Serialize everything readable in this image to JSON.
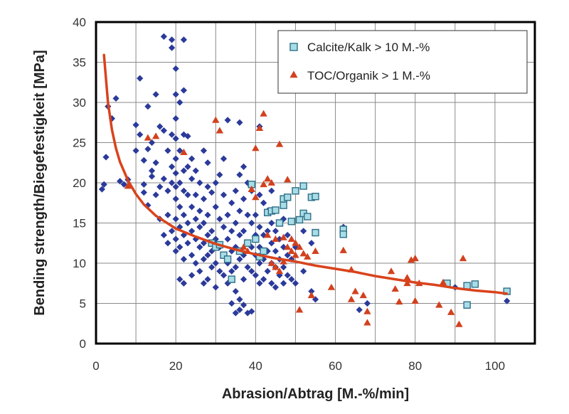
{
  "chart_data": {
    "type": "scatter",
    "title": "",
    "xlabel": "Abrasion/Abtrag [M.-%/min]",
    "ylabel": "Bending strength/Biegefestigkeit [MPa]",
    "xlim": [
      0,
      110
    ],
    "ylim": [
      0,
      40
    ],
    "xticks": [
      0,
      20,
      40,
      60,
      80,
      100
    ],
    "yticks": [
      0,
      5,
      10,
      15,
      20,
      25,
      30,
      35,
      40
    ],
    "grid": true,
    "legend_position": "top-right",
    "colors": {
      "all_samples": "#2b3a9a",
      "calcite": "#a8dde8",
      "calcite_border": "#2e6f86",
      "toc": "#d2411e",
      "trend": "#d9431c"
    },
    "series": [
      {
        "marker": "diamond",
        "points": [
          [
            1.5,
            19.2
          ],
          [
            2,
            19.8
          ],
          [
            2.5,
            23.2
          ],
          [
            3,
            29.5
          ],
          [
            4,
            28.0
          ],
          [
            5,
            30.5
          ],
          [
            6,
            20.2
          ],
          [
            7,
            19.8
          ],
          [
            8,
            20.4
          ],
          [
            10,
            24.0
          ],
          [
            10,
            27.2
          ],
          [
            11,
            33.0
          ],
          [
            11,
            26.0
          ],
          [
            12,
            22.8
          ],
          [
            12,
            19.8
          ],
          [
            12,
            18.8
          ],
          [
            13,
            17.2
          ],
          [
            13,
            29.5
          ],
          [
            13,
            24.2
          ],
          [
            14,
            25.0
          ],
          [
            14,
            21.5
          ],
          [
            14,
            20.8
          ],
          [
            15,
            31.0
          ],
          [
            15,
            22.5
          ],
          [
            15,
            18.5
          ],
          [
            16,
            15.5
          ],
          [
            16,
            19.5
          ],
          [
            16,
            27.0
          ],
          [
            17,
            38.2
          ],
          [
            17,
            26.5
          ],
          [
            17,
            20.5
          ],
          [
            17,
            13.5
          ],
          [
            18,
            24.0
          ],
          [
            18,
            19.0
          ],
          [
            18,
            16.0
          ],
          [
            18,
            12.5
          ],
          [
            19,
            37.8
          ],
          [
            19,
            36.8
          ],
          [
            19,
            26.0
          ],
          [
            19,
            22.0
          ],
          [
            19,
            20.0
          ],
          [
            19,
            14.0
          ],
          [
            20,
            34.2
          ],
          [
            20,
            31.0
          ],
          [
            20,
            28.0
          ],
          [
            20,
            25.5
          ],
          [
            20,
            23.0
          ],
          [
            20,
            21.2
          ],
          [
            20,
            19.5
          ],
          [
            20,
            18.0
          ],
          [
            20,
            15.5
          ],
          [
            20,
            13.0
          ],
          [
            20,
            11.5
          ],
          [
            21,
            30.0
          ],
          [
            21,
            24.0
          ],
          [
            21,
            20.0
          ],
          [
            21,
            17.0
          ],
          [
            21,
            14.5
          ],
          [
            21,
            12.0
          ],
          [
            21,
            8.0
          ],
          [
            22,
            37.8
          ],
          [
            22,
            31.5
          ],
          [
            22,
            26.0
          ],
          [
            22,
            21.5
          ],
          [
            22,
            19.0
          ],
          [
            22,
            16.0
          ],
          [
            22,
            13.5
          ],
          [
            22,
            10.5
          ],
          [
            22,
            7.5
          ],
          [
            23,
            25.8
          ],
          [
            23,
            22.0
          ],
          [
            23,
            18.5
          ],
          [
            23,
            15.0
          ],
          [
            23,
            12.5
          ],
          [
            24,
            23.0
          ],
          [
            24,
            20.5
          ],
          [
            24,
            17.0
          ],
          [
            24,
            14.0
          ],
          [
            24,
            11.0
          ],
          [
            24,
            8.5
          ],
          [
            25,
            21.5
          ],
          [
            25,
            18.5
          ],
          [
            25,
            15.5
          ],
          [
            25,
            13.0
          ],
          [
            25,
            10.0
          ],
          [
            26,
            20.0
          ],
          [
            26,
            16.5
          ],
          [
            26,
            14.5
          ],
          [
            26,
            12.0
          ],
          [
            26,
            9.0
          ],
          [
            27,
            24.0
          ],
          [
            27,
            18.0
          ],
          [
            27,
            15.0
          ],
          [
            27,
            12.5
          ],
          [
            27,
            10.5
          ],
          [
            27,
            7.5
          ],
          [
            28,
            22.5
          ],
          [
            28,
            19.5
          ],
          [
            28,
            16.0
          ],
          [
            28,
            13.5
          ],
          [
            28,
            11.0
          ],
          [
            28,
            8.0
          ],
          [
            29,
            18.8
          ],
          [
            29,
            14.0
          ],
          [
            29,
            11.5
          ],
          [
            29,
            9.5
          ],
          [
            30,
            20.0
          ],
          [
            30,
            17.0
          ],
          [
            30,
            13.0
          ],
          [
            30,
            10.0
          ],
          [
            30,
            7.0
          ],
          [
            31,
            21.0
          ],
          [
            31,
            15.5
          ],
          [
            31,
            12.0
          ],
          [
            31,
            9.0
          ],
          [
            32,
            23.0
          ],
          [
            32,
            18.5
          ],
          [
            32,
            14.5
          ],
          [
            32,
            11.0
          ],
          [
            32,
            8.5
          ],
          [
            33,
            27.8
          ],
          [
            33,
            16.0
          ],
          [
            33,
            13.0
          ],
          [
            33,
            10.0
          ],
          [
            33,
            7.5
          ],
          [
            34,
            17.5
          ],
          [
            34,
            14.0
          ],
          [
            34,
            11.5
          ],
          [
            34,
            9.0
          ],
          [
            34,
            5.0
          ],
          [
            35,
            19.0
          ],
          [
            35,
            15.0
          ],
          [
            35,
            12.0
          ],
          [
            35,
            9.5
          ],
          [
            35,
            6.5
          ],
          [
            35,
            3.8
          ],
          [
            36,
            27.5
          ],
          [
            36,
            21.0
          ],
          [
            36,
            16.5
          ],
          [
            36,
            13.5
          ],
          [
            36,
            10.5
          ],
          [
            36,
            5.5
          ],
          [
            36,
            4.2
          ],
          [
            37,
            22.0
          ],
          [
            37,
            18.0
          ],
          [
            37,
            14.0
          ],
          [
            37,
            11.0
          ],
          [
            37,
            8.0
          ],
          [
            37,
            4.8
          ],
          [
            38,
            20.0
          ],
          [
            38,
            16.0
          ],
          [
            38,
            12.5
          ],
          [
            38,
            9.5
          ],
          [
            38,
            3.8
          ],
          [
            39,
            19.0
          ],
          [
            39,
            15.0
          ],
          [
            39,
            12.0
          ],
          [
            39,
            9.0
          ],
          [
            39,
            4.0
          ],
          [
            40,
            16.0
          ],
          [
            40,
            13.5
          ],
          [
            40,
            11.0
          ],
          [
            40,
            8.5
          ],
          [
            41,
            27.0
          ],
          [
            41,
            18.5
          ],
          [
            41,
            14.5
          ],
          [
            41,
            12.0
          ],
          [
            41,
            10.0
          ],
          [
            41,
            7.5
          ],
          [
            42,
            17.5
          ],
          [
            42,
            13.5
          ],
          [
            42,
            10.5
          ],
          [
            42,
            8.0
          ],
          [
            43,
            16.5
          ],
          [
            43,
            14.0
          ],
          [
            43,
            11.5
          ],
          [
            43,
            9.0
          ],
          [
            44,
            19.0
          ],
          [
            44,
            15.0
          ],
          [
            44,
            12.5
          ],
          [
            44,
            10.0
          ],
          [
            44,
            7.5
          ],
          [
            45,
            14.0
          ],
          [
            45,
            11.5
          ],
          [
            45,
            9.5
          ],
          [
            45,
            7.0
          ],
          [
            46,
            13.0
          ],
          [
            46,
            10.5
          ],
          [
            46,
            8.5
          ],
          [
            47,
            15.5
          ],
          [
            47,
            12.0
          ],
          [
            47,
            9.5
          ],
          [
            47,
            7.5
          ],
          [
            48,
            13.5
          ],
          [
            48,
            11.0
          ],
          [
            48,
            8.5
          ],
          [
            49,
            10.5
          ],
          [
            49,
            8.0
          ],
          [
            50,
            12.0
          ],
          [
            50,
            7.5
          ],
          [
            52,
            14.0
          ],
          [
            52,
            9.0
          ],
          [
            54,
            12.5
          ],
          [
            54,
            6.5
          ],
          [
            55,
            5.5
          ],
          [
            62,
            14.5
          ],
          [
            66,
            4.2
          ],
          [
            68,
            5.0
          ],
          [
            90,
            7.0
          ],
          [
            103,
            5.3
          ]
        ]
      },
      {
        "name": "Calcite/Kalk > 10 M.-%",
        "marker": "square",
        "points": [
          [
            29,
            12.5
          ],
          [
            30,
            12.0
          ],
          [
            31,
            12.3
          ],
          [
            32,
            11.0
          ],
          [
            33,
            10.5
          ],
          [
            34,
            8.0
          ],
          [
            36,
            11.5
          ],
          [
            38,
            12.5
          ],
          [
            39,
            19.8
          ],
          [
            40,
            13.0
          ],
          [
            41,
            10.8
          ],
          [
            42,
            11.5
          ],
          [
            43,
            16.3
          ],
          [
            44,
            16.5
          ],
          [
            45,
            16.6
          ],
          [
            46,
            15.0
          ],
          [
            47,
            18.0
          ],
          [
            47,
            17.2
          ],
          [
            48,
            18.2
          ],
          [
            49,
            15.2
          ],
          [
            50,
            19.0
          ],
          [
            51,
            15.4
          ],
          [
            52,
            19.6
          ],
          [
            52,
            16.2
          ],
          [
            53,
            15.8
          ],
          [
            54,
            18.2
          ],
          [
            55,
            18.3
          ],
          [
            55,
            13.8
          ],
          [
            62,
            14.2
          ],
          [
            62,
            13.6
          ],
          [
            88,
            7.5
          ],
          [
            93,
            7.2
          ],
          [
            93,
            4.8
          ],
          [
            95,
            7.4
          ],
          [
            103,
            6.5
          ]
        ]
      },
      {
        "name": "TOC/Organik > 1 M.-%",
        "marker": "triangle",
        "points": [
          [
            8,
            19.6
          ],
          [
            13,
            25.6
          ],
          [
            15,
            25.8
          ],
          [
            22,
            23.8
          ],
          [
            30,
            27.8
          ],
          [
            31,
            26.5
          ],
          [
            37,
            12.0
          ],
          [
            38,
            11.5
          ],
          [
            39,
            19.2
          ],
          [
            40,
            24.3
          ],
          [
            40,
            18.2
          ],
          [
            41,
            26.8
          ],
          [
            42,
            28.6
          ],
          [
            42,
            19.8
          ],
          [
            43,
            20.5
          ],
          [
            43,
            13.5
          ],
          [
            44,
            20.0
          ],
          [
            44,
            10.0
          ],
          [
            45,
            9.5
          ],
          [
            45,
            13.0
          ],
          [
            46,
            24.8
          ],
          [
            46,
            9.0
          ],
          [
            47,
            10.2
          ],
          [
            47,
            13.2
          ],
          [
            48,
            12.0
          ],
          [
            48,
            20.4
          ],
          [
            49,
            11.5
          ],
          [
            49,
            13.0
          ],
          [
            50,
            12.5
          ],
          [
            50,
            11.0
          ],
          [
            51,
            4.2
          ],
          [
            51,
            12.0
          ],
          [
            52,
            11.2
          ],
          [
            53,
            10.8
          ],
          [
            54,
            6.0
          ],
          [
            55,
            11.5
          ],
          [
            59,
            7.0
          ],
          [
            62,
            11.6
          ],
          [
            64,
            9.2
          ],
          [
            64,
            5.5
          ],
          [
            65,
            6.5
          ],
          [
            67,
            6.0
          ],
          [
            68,
            4.0
          ],
          [
            68,
            2.6
          ],
          [
            74,
            9.0
          ],
          [
            75,
            6.8
          ],
          [
            76,
            5.2
          ],
          [
            78,
            7.5
          ],
          [
            78,
            8.2
          ],
          [
            79,
            10.4
          ],
          [
            80,
            10.6
          ],
          [
            80,
            5.3
          ],
          [
            81,
            7.5
          ],
          [
            86,
            4.8
          ],
          [
            87,
            7.6
          ],
          [
            89,
            3.9
          ],
          [
            91,
            2.4
          ],
          [
            92,
            10.6
          ]
        ]
      }
    ],
    "trendline": {
      "type": "power",
      "points": [
        [
          2,
          35.9
        ],
        [
          3,
          30.0
        ],
        [
          4,
          26.6
        ],
        [
          5,
          24.3
        ],
        [
          6,
          22.6
        ],
        [
          8,
          20.3
        ],
        [
          10,
          18.6
        ],
        [
          12,
          17.3
        ],
        [
          15,
          15.9
        ],
        [
          20,
          14.3
        ],
        [
          25,
          13.3
        ],
        [
          30,
          12.4
        ],
        [
          35,
          11.7
        ],
        [
          40,
          11.1
        ],
        [
          45,
          10.6
        ],
        [
          50,
          10.2
        ],
        [
          55,
          9.7
        ],
        [
          60,
          9.3
        ],
        [
          65,
          8.9
        ],
        [
          70,
          8.4
        ],
        [
          75,
          8.0
        ],
        [
          80,
          7.6
        ],
        [
          85,
          7.3
        ],
        [
          90,
          6.9
        ],
        [
          95,
          6.6
        ],
        [
          100,
          6.4
        ],
        [
          103,
          6.2
        ]
      ]
    }
  }
}
